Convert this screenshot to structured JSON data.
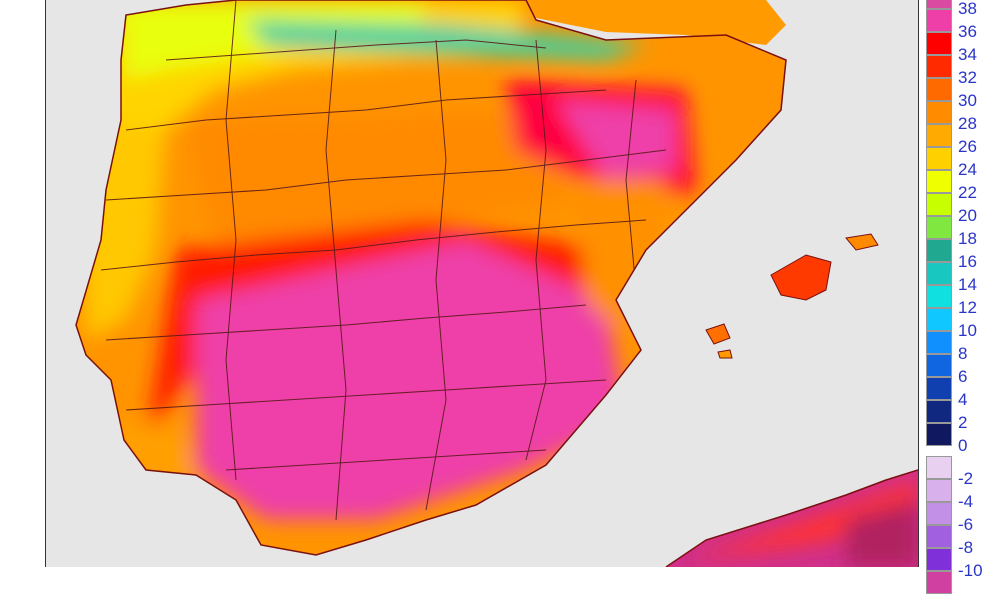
{
  "legend": {
    "positive": [
      {
        "label": "38",
        "color": "#d94aa0"
      },
      {
        "label": "36",
        "color": "#ee3fa8"
      },
      {
        "label": "34",
        "color": "#ff0000"
      },
      {
        "label": "32",
        "color": "#ff2a00"
      },
      {
        "label": "30",
        "color": "#ff6a00"
      },
      {
        "label": "28",
        "color": "#ff8c00"
      },
      {
        "label": "26",
        "color": "#ffaa00"
      },
      {
        "label": "24",
        "color": "#ffd000"
      },
      {
        "label": "22",
        "color": "#f0ff00"
      },
      {
        "label": "20",
        "color": "#c8ff00"
      },
      {
        "label": "18",
        "color": "#80e640"
      },
      {
        "label": "16",
        "color": "#20a890"
      },
      {
        "label": "14",
        "color": "#18c8c0"
      },
      {
        "label": "12",
        "color": "#10e0e0"
      },
      {
        "label": "10",
        "color": "#10c8ff"
      },
      {
        "label": "8",
        "color": "#1090ff"
      },
      {
        "label": "6",
        "color": "#1066e0"
      },
      {
        "label": "4",
        "color": "#1040b0"
      },
      {
        "label": "2",
        "color": "#102880"
      },
      {
        "label": "0",
        "color": "#101860"
      }
    ],
    "negative": [
      {
        "label": "-2",
        "color": "#e8d0f0"
      },
      {
        "label": "-4",
        "color": "#d8b0ec"
      },
      {
        "label": "-6",
        "color": "#c290e6"
      },
      {
        "label": "-8",
        "color": "#a060e0"
      },
      {
        "label": "-10",
        "color": "#8030d8"
      },
      {
        "label": "",
        "color": "#d040a0"
      }
    ]
  },
  "palette": {
    "background": "#e6e6e6",
    "border_lines": "#5a1a1a"
  }
}
